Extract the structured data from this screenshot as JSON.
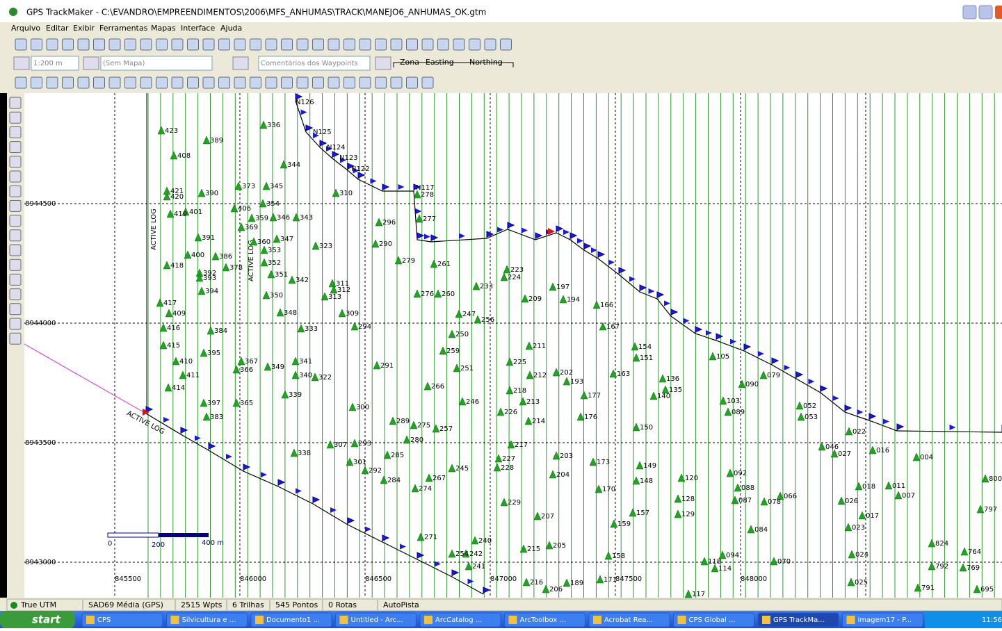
{
  "window": {
    "title": "GPS TrackMaker - C:\\EVANDRO\\EMPREENDIMENTOS\\2006\\MFS_ANHUMAS\\TRACK\\MANEJO6_ANHUMAS_OK.gtm",
    "menu": [
      "Arquivo",
      "Editar",
      "Exibir",
      "Ferramentas",
      "Mapas",
      "Interface",
      "Ajuda"
    ],
    "toolbar": {
      "scale": "1:200 m",
      "map": "(Sem Mapa)",
      "comments": "Comentários dos Waypoints",
      "coord_headers": [
        "Zona",
        "Easting",
        "Northing"
      ]
    },
    "map": {
      "northing_labels": [
        "8944500",
        "8944000",
        "8943500",
        "8943000"
      ],
      "easting_labels": [
        "845500",
        "846000",
        "846500",
        "847000",
        "847500",
        "848000"
      ],
      "track_labels": [
        "ACTIVE LOG",
        "ACTIVE LOG",
        "ACTIVE LOG"
      ],
      "scale_bar": [
        "0",
        "200",
        "400 m"
      ],
      "waypoints": [
        "N126",
        "N125",
        "N124",
        "N123",
        "N122",
        "N117",
        "278",
        "277",
        "423",
        "389",
        "408",
        "390",
        "401",
        "391",
        "400",
        "418",
        "394",
        "417",
        "409",
        "416",
        "384",
        "415",
        "395",
        "410",
        "411",
        "414",
        "397",
        "383",
        "373",
        "345",
        "354",
        "347",
        "323",
        "343",
        "336",
        "344",
        "310",
        "296",
        "290",
        "279",
        "261",
        "260",
        "276",
        "250",
        "259",
        "251",
        "246",
        "266",
        "300",
        "291",
        "309",
        "294",
        "223",
        "224",
        "209",
        "197",
        "194",
        "166",
        "167",
        "211",
        "212",
        "213",
        "214",
        "218",
        "225",
        "226",
        "202",
        "193",
        "177",
        "176",
        "163",
        "154",
        "151",
        "150",
        "136",
        "135",
        "140",
        "149",
        "148",
        "157",
        "128",
        "129",
        "120",
        "103",
        "089",
        "105",
        "090",
        "079",
        "066",
        "078",
        "070",
        "084",
        "052",
        "053",
        "046",
        "027",
        "022",
        "016",
        "018",
        "023",
        "024",
        "025",
        "017",
        "026",
        "004",
        "007",
        "011",
        "800",
        "797",
        "791",
        "792",
        "824",
        "764",
        "769",
        "695",
        "233",
        "247",
        "256",
        "229",
        "207",
        "204",
        "203",
        "215",
        "205",
        "216",
        "206",
        "189",
        "171",
        "170",
        "173",
        "159",
        "158",
        "117",
        "114",
        "118",
        "094",
        "087",
        "088",
        "092",
        "240",
        "241",
        "242",
        "254",
        "227",
        "228",
        "217",
        "245",
        "267",
        "274",
        "271",
        "284",
        "285",
        "280",
        "275",
        "289",
        "257",
        "293",
        "307",
        "301",
        "292",
        "338",
        "339",
        "340",
        "341",
        "349",
        "365",
        "366",
        "367",
        "350",
        "348",
        "333",
        "322",
        "311",
        "312",
        "313",
        "342",
        "351",
        "352",
        "353",
        "360",
        "359",
        "346",
        "369",
        "378",
        "392",
        "393",
        "406",
        "419",
        "420",
        "421",
        "386"
      ]
    }
  },
  "status_bar": [
    "True UTM",
    "SAD69 Média (GPS)",
    "2515 Wpts",
    "6 Trilhas",
    "545 Pontos",
    "0 Rotas",
    "AutoPista"
  ],
  "taskbar": {
    "start": "start",
    "items": [
      "CPS",
      "Silvicultura e ...",
      "Documento1 ...",
      "Untitled - Arc...",
      "ArcCatalog ...",
      "ArcToolbox ...",
      "Acrobat Rea...",
      "CPS Global ...",
      "GPS TrackMa...",
      "imagem17 - P..."
    ],
    "clock": "11:56"
  }
}
